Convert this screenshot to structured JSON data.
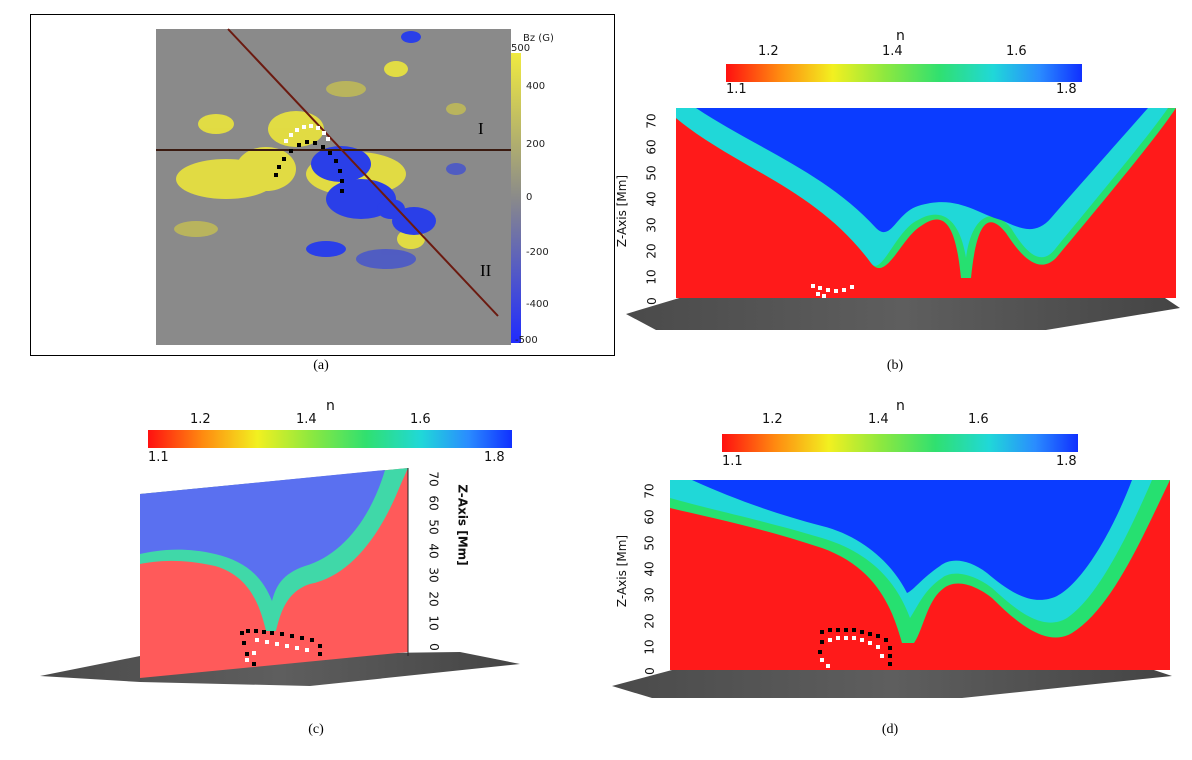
{
  "panel_a": {
    "colorbar_title": "Bz (G)",
    "colorbar_ticks": [
      "500",
      "400",
      "200",
      "0",
      "-200",
      "-400",
      "-500"
    ],
    "line_labels": [
      "I",
      "II"
    ],
    "caption": "(a)",
    "colors": {
      "positive": "#e6e040",
      "negative": "#2a3fe8",
      "background": "#8a8a8a",
      "cut_line": "#6b1a10"
    }
  },
  "colorbar_n": {
    "title": "n",
    "ticks": [
      "1.2",
      "1.4",
      "1.6"
    ],
    "min_label": "1.1",
    "max_label": "1.8"
  },
  "z_axis": {
    "label": "Z-Axis [Mm]",
    "ticks": [
      "70",
      "60",
      "50",
      "40",
      "30",
      "20",
      "10",
      "0"
    ]
  },
  "captions": {
    "b": "(b)",
    "c": "(c)",
    "d": "(d)"
  },
  "colors": {
    "high_n": "#0b3cff",
    "low_n": "#ff1a1a",
    "mid_n": "#26e070"
  }
}
